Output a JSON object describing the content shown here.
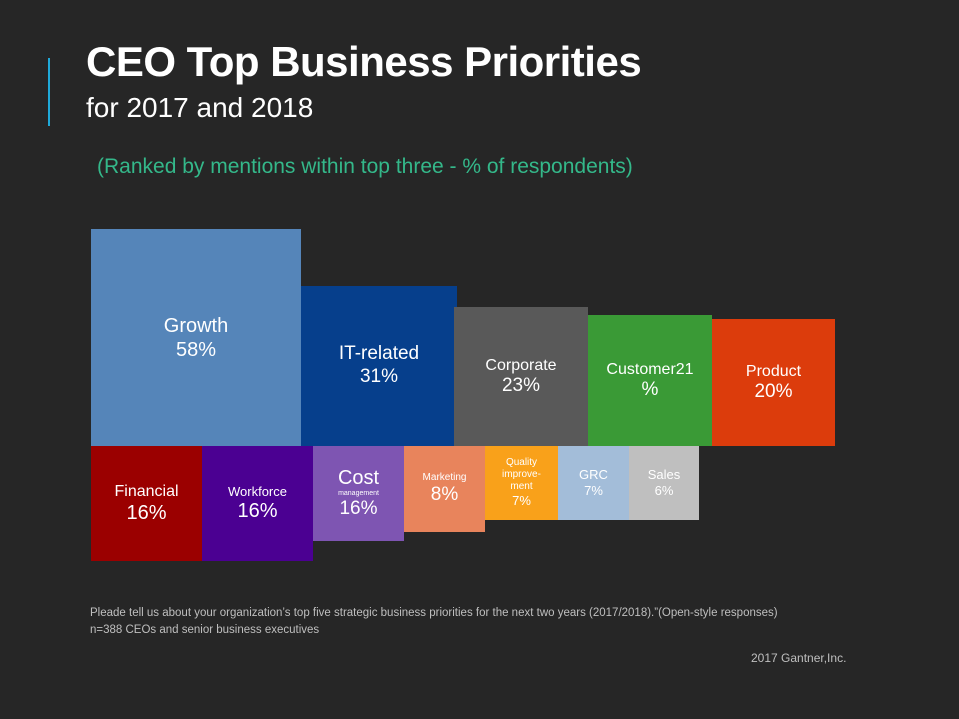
{
  "title": "CEO Top Business Priorities",
  "subtitle": "for 2017 and 2018",
  "note": "(Ranked by mentions  within top three - % of respondents)",
  "footnote": [
    "Pleade tell us about your organization’s top five strategic business priorities for the next two years (2017/2018).”(Open-style responses)",
    "n=388 CEOs and  senior business executives"
  ],
  "copyright": "2017 Gantner,Inc.",
  "chart_data": {
    "type": "bar",
    "title": "CEO Top Business Priorities",
    "categories": [
      "Growth",
      "IT-related",
      "Corporate",
      "Customer",
      "Product",
      "Financial",
      "Workforce",
      "Cost management",
      "Marketing",
      "Quality improvement",
      "GRC",
      "Sales"
    ],
    "values": [
      58,
      31,
      23,
      21,
      20,
      16,
      16,
      16,
      8,
      7,
      7,
      6
    ],
    "unit": "%",
    "colors": [
      "#5585b9",
      "#063f8c",
      "#595959",
      "#3a9a36",
      "#dc3c0c",
      "#9b0000",
      "#4b0092",
      "#7e55b2",
      "#e8845c",
      "#f9a11a",
      "#a3bdd9",
      "#bfbfbf"
    ],
    "labels": [
      [
        "Growth",
        "58%"
      ],
      [
        "IT-related",
        "31%"
      ],
      [
        "Corporate",
        "23%"
      ],
      [
        "Customer21",
        "%"
      ],
      [
        "Product",
        "20%"
      ],
      [
        "Financial",
        "16%"
      ],
      [
        "Workforce",
        "16%"
      ],
      [
        "Cost",
        "management",
        "16%"
      ],
      [
        "Marketing",
        "8%"
      ],
      [
        "Quality",
        "improve-",
        "ment",
        "7%"
      ],
      [
        "GRC",
        "7%"
      ],
      [
        "Sales",
        "6%"
      ]
    ]
  }
}
